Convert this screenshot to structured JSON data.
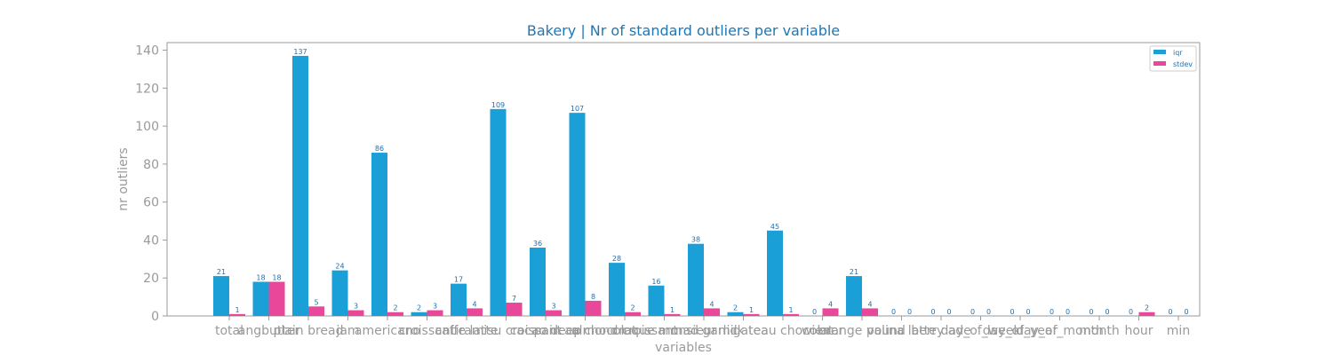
{
  "chart_data": {
    "type": "bar",
    "title": "Bakery | Nr of standard outliers per variable",
    "xlabel": "variables",
    "ylabel": "nr outliers",
    "ylim": [
      0,
      144
    ],
    "yticks": [
      0,
      20,
      40,
      60,
      80,
      100,
      120,
      140
    ],
    "grid": false,
    "legend_position": "top-right",
    "categories": [
      "total",
      "angbutter",
      "plain bread",
      "jam",
      "americano",
      "croissant",
      "caffe latte",
      "tiramisu croissant",
      "cacao deep",
      "pain au chocolat",
      "almond croissant",
      "croque monsieur",
      "mad garlic",
      "milk tea",
      "gateau chocolat",
      "wiener",
      "orange pound",
      "valina latte",
      "berry ade",
      "day_of_week",
      "day_of_year",
      "day_of_month",
      "month",
      "hour",
      "min"
    ],
    "tick_labels": [
      "total",
      "angbutter",
      "plain bread",
      "jam",
      "americano",
      "croissant",
      "caffe latte",
      "tiramisu croissant",
      "cacao deep",
      "pain au chocolat",
      "almond croissant",
      "croque monsieur",
      "mad garlic",
      "milk tea",
      "gateau chocolat",
      "wiener",
      "orange pound",
      "valina latte",
      "berry ade",
      "day_of_week",
      "day_of_year",
      "day_of_month",
      "month",
      "hour",
      "min"
    ],
    "series": [
      {
        "name": "iqr",
        "color": "#1a9fd6",
        "values": [
          21,
          18,
          137,
          24,
          86,
          2,
          17,
          109,
          36,
          107,
          28,
          16,
          38,
          2,
          45,
          0,
          21,
          0,
          0,
          0,
          0,
          0,
          0,
          0,
          0
        ]
      },
      {
        "name": "stdev",
        "color": "#e8479a",
        "values": [
          1,
          18,
          5,
          3,
          2,
          3,
          4,
          7,
          3,
          8,
          2,
          1,
          4,
          1,
          1,
          4,
          4,
          0,
          0,
          0,
          0,
          0,
          0,
          2,
          0
        ]
      }
    ],
    "colors": {
      "title": "#1f77b4",
      "axis": "#9a9a9a",
      "label_iqr": "#1f6fb0"
    }
  }
}
